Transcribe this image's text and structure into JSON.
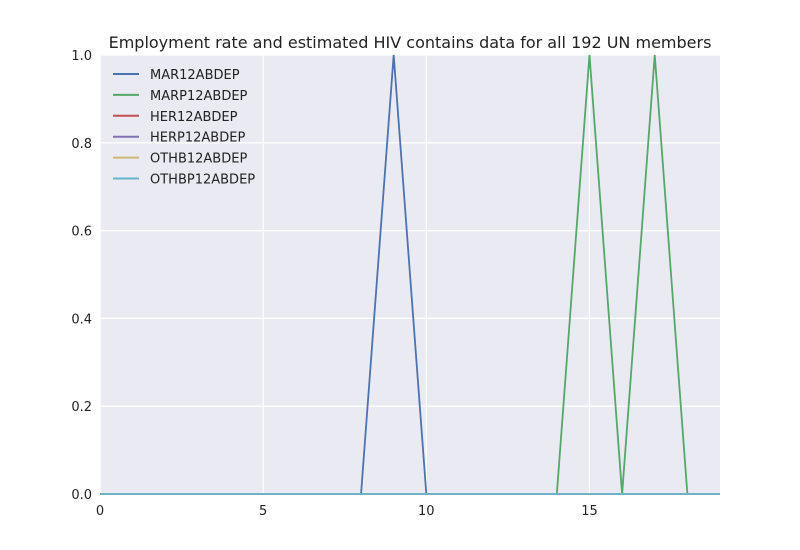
{
  "chart_data": {
    "type": "line",
    "title": "Employment rate and estimated HIV contains data for all 192 UN members",
    "xlabel": "",
    "ylabel": "",
    "xlim": [
      0,
      19
    ],
    "ylim": [
      0.0,
      1.0
    ],
    "xticks": [
      0,
      5,
      10,
      15
    ],
    "yticks": [
      0.0,
      0.2,
      0.4,
      0.6,
      0.8,
      1.0
    ],
    "xtick_labels": [
      "0",
      "5",
      "10",
      "15"
    ],
    "ytick_labels": [
      "0.0",
      "0.2",
      "0.4",
      "0.6",
      "0.8",
      "1.0"
    ],
    "grid": true,
    "legend_position": "top-left",
    "x": [
      0,
      1,
      2,
      3,
      4,
      5,
      6,
      7,
      8,
      9,
      10,
      11,
      12,
      13,
      14,
      15,
      16,
      17,
      18,
      19
    ],
    "series": [
      {
        "name": "MAR12ABDEP",
        "color": "#4c72b0",
        "values": [
          0,
          0,
          0,
          0,
          0,
          0,
          0,
          0,
          0,
          1,
          0,
          0,
          0,
          0,
          0,
          0,
          0,
          0,
          0,
          0
        ]
      },
      {
        "name": "MARP12ABDEP",
        "color": "#55a868",
        "values": [
          0,
          0,
          0,
          0,
          0,
          0,
          0,
          0,
          0,
          0,
          0,
          0,
          0,
          0,
          0,
          1,
          0,
          1,
          0,
          0
        ]
      },
      {
        "name": "HER12ABDEP",
        "color": "#c44e52",
        "values": [
          0,
          0,
          0,
          0,
          0,
          0,
          0,
          0,
          0,
          0,
          0,
          0,
          0,
          0,
          0,
          0,
          0,
          0,
          0,
          0
        ]
      },
      {
        "name": "HERP12ABDEP",
        "color": "#8172b2",
        "values": [
          0,
          0,
          0,
          0,
          0,
          0,
          0,
          0,
          0,
          0,
          0,
          0,
          0,
          0,
          0,
          0,
          0,
          0,
          0,
          0
        ]
      },
      {
        "name": "OTHB12ABDEP",
        "color": "#ccb974",
        "values": [
          0,
          0,
          0,
          0,
          0,
          0,
          0,
          0,
          0,
          0,
          0,
          0,
          0,
          0,
          0,
          0,
          0,
          0,
          0,
          0
        ]
      },
      {
        "name": "OTHBP12ABDEP",
        "color": "#64b5cd",
        "values": [
          0,
          0,
          0,
          0,
          0,
          0,
          0,
          0,
          0,
          0,
          0,
          0,
          0,
          0,
          0,
          0,
          0,
          0,
          0,
          0
        ]
      }
    ],
    "colors": {
      "plot_background": "#eaeaf2",
      "grid": "#ffffff"
    }
  }
}
